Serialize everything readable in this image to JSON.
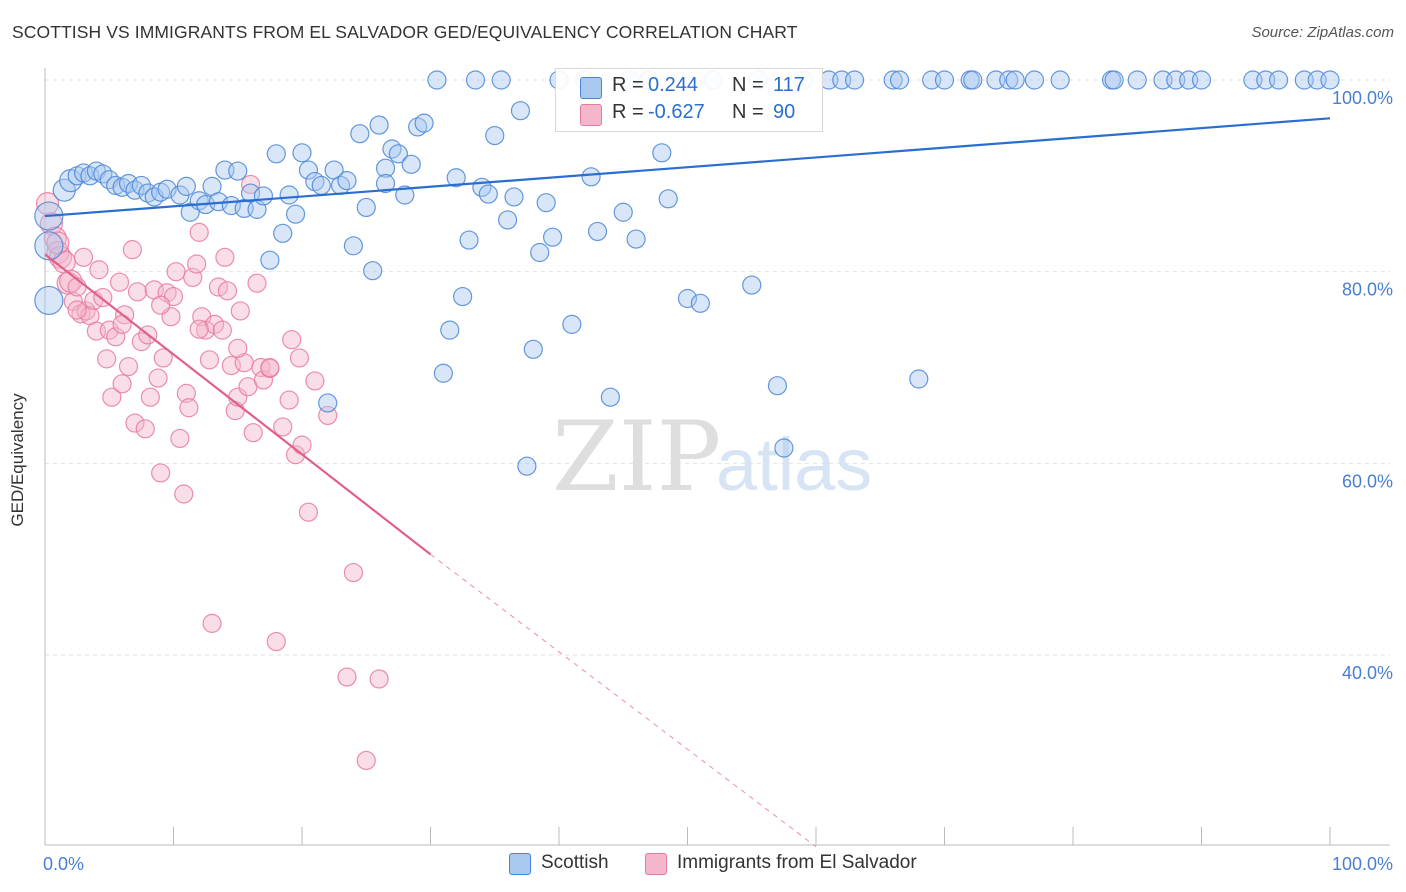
{
  "title": "SCOTTISH VS IMMIGRANTS FROM EL SALVADOR GED/EQUIVALENCY CORRELATION CHART",
  "source": "Source: ZipAtlas.com",
  "watermark": {
    "zip": "ZIP",
    "atlas": "atlas"
  },
  "colors": {
    "blue_fill": "#a9c8ef",
    "blue_stroke": "#4a86d6",
    "blue_line": "#2a6fcf",
    "pink_fill": "#f4b6c9",
    "pink_stroke": "#e77a9e",
    "pink_line": "#e0608c",
    "tick_blue": "#4a7fd0",
    "grid": "#e2e2e2"
  },
  "legend": {
    "rows": [
      {
        "r_key": "R =",
        "r_value": "0.244",
        "n_key": "N =",
        "n_value": "117"
      },
      {
        "r_key": "R =",
        "r_value": "-0.627",
        "n_key": "N =",
        "n_value": "90"
      }
    ]
  },
  "bottom_legend": [
    "Scottish",
    "Immigrants from El Salvador"
  ],
  "chart_data": {
    "type": "scatter",
    "title": "SCOTTISH VS IMMIGRANTS FROM EL SALVADOR GED/EQUIVALENCY CORRELATION CHART",
    "xlabel": "",
    "ylabel": "GED/Equivalency",
    "xlim": [
      0,
      100
    ],
    "ylim": [
      20,
      102
    ],
    "x_tick_labels": [
      "0.0%",
      "100.0%"
    ],
    "y_ticks": [
      40,
      60,
      80,
      100
    ],
    "y_tick_labels": [
      "40.0%",
      "60.0%",
      "80.0%",
      "100.0%"
    ],
    "grid": "horizontal dashed",
    "legend_position": "top-center",
    "series": [
      {
        "name": "Scottish",
        "r": 0.244,
        "n": 117,
        "trend": {
          "x": [
            0,
            100
          ],
          "y": [
            85.8,
            96.0
          ]
        },
        "points": [
          [
            0.3,
            85.8
          ],
          [
            0.3,
            82.7
          ],
          [
            0.3,
            77.0
          ],
          [
            1.5,
            88.5
          ],
          [
            2.0,
            89.5
          ],
          [
            2.5,
            90.0
          ],
          [
            3.0,
            90.3
          ],
          [
            3.5,
            90.0
          ],
          [
            4.0,
            90.5
          ],
          [
            4.5,
            90.2
          ],
          [
            5.0,
            89.6
          ],
          [
            5.5,
            89.0
          ],
          [
            6.0,
            88.8
          ],
          [
            6.5,
            89.2
          ],
          [
            7.0,
            88.5
          ],
          [
            7.5,
            89.0
          ],
          [
            8.0,
            88.2
          ],
          [
            8.5,
            87.8
          ],
          [
            9.0,
            88.3
          ],
          [
            9.5,
            88.6
          ],
          [
            10.5,
            88.0
          ],
          [
            11.0,
            88.9
          ],
          [
            11.3,
            86.2
          ],
          [
            12.0,
            87.4
          ],
          [
            12.5,
            87.0
          ],
          [
            13.0,
            88.9
          ],
          [
            13.5,
            87.3
          ],
          [
            14.0,
            90.6
          ],
          [
            14.5,
            86.9
          ],
          [
            15.0,
            90.5
          ],
          [
            15.5,
            86.6
          ],
          [
            16.0,
            88.2
          ],
          [
            16.5,
            86.5
          ],
          [
            17.0,
            87.9
          ],
          [
            17.5,
            81.2
          ],
          [
            18.0,
            92.3
          ],
          [
            18.5,
            84.0
          ],
          [
            19.0,
            88.0
          ],
          [
            19.5,
            86.0
          ],
          [
            20.0,
            92.4
          ],
          [
            20.5,
            90.6
          ],
          [
            21.0,
            89.4
          ],
          [
            21.5,
            89.0
          ],
          [
            22.0,
            66.3
          ],
          [
            22.5,
            90.6
          ],
          [
            23.0,
            89.0
          ],
          [
            23.5,
            89.5
          ],
          [
            24.0,
            82.7
          ],
          [
            24.5,
            94.4
          ],
          [
            25.0,
            86.7
          ],
          [
            25.5,
            80.1
          ],
          [
            26.0,
            95.3
          ],
          [
            26.5,
            90.8
          ],
          [
            27.0,
            92.8
          ],
          [
            27.5,
            92.3
          ],
          [
            28.0,
            88.0
          ],
          [
            28.5,
            91.2
          ],
          [
            29.0,
            95.1
          ],
          [
            29.5,
            95.5
          ],
          [
            30.5,
            100.0
          ],
          [
            31.0,
            69.4
          ],
          [
            31.5,
            73.9
          ],
          [
            32.0,
            89.8
          ],
          [
            32.5,
            77.4
          ],
          [
            33.0,
            83.3
          ],
          [
            33.5,
            100.0
          ],
          [
            34.0,
            88.8
          ],
          [
            34.5,
            88.1
          ],
          [
            35.0,
            94.2
          ],
          [
            35.5,
            100.0
          ],
          [
            36.0,
            85.4
          ],
          [
            36.5,
            87.8
          ],
          [
            37.0,
            96.8
          ],
          [
            37.5,
            59.7
          ],
          [
            38.0,
            71.9
          ],
          [
            38.5,
            82.0
          ],
          [
            39.0,
            87.2
          ],
          [
            39.5,
            83.6
          ],
          [
            40.0,
            100.0
          ],
          [
            41.0,
            74.5
          ],
          [
            42.0,
            100.0
          ],
          [
            42.5,
            89.9
          ],
          [
            43.0,
            84.2
          ],
          [
            44.0,
            66.9
          ],
          [
            45.0,
            86.2
          ],
          [
            45.5,
            100.0
          ],
          [
            46.0,
            83.4
          ],
          [
            47.0,
            100.0
          ],
          [
            48.0,
            92.4
          ],
          [
            48.5,
            87.6
          ],
          [
            50.0,
            77.2
          ],
          [
            51.0,
            76.7
          ],
          [
            52.0,
            100.0
          ],
          [
            55.0,
            78.6
          ],
          [
            57.0,
            68.1
          ],
          [
            57.5,
            61.6
          ],
          [
            59.0,
            100.0
          ],
          [
            61.0,
            100.0
          ],
          [
            62.0,
            100.0
          ],
          [
            63.0,
            100.0
          ],
          [
            66.0,
            100.0
          ],
          [
            66.5,
            100.0
          ],
          [
            68.0,
            68.8
          ],
          [
            69.0,
            100.0
          ],
          [
            70.0,
            100.0
          ],
          [
            72.0,
            100.0
          ],
          [
            72.2,
            100.0
          ],
          [
            74.0,
            100.0
          ],
          [
            75.0,
            100.0
          ],
          [
            75.5,
            100.0
          ],
          [
            77.0,
            100.0
          ],
          [
            79.0,
            100.0
          ],
          [
            83.0,
            100.0
          ],
          [
            83.2,
            100.0
          ],
          [
            85.0,
            100.0
          ],
          [
            87.0,
            100.0
          ],
          [
            88.0,
            100.0
          ],
          [
            89.0,
            100.0
          ],
          [
            90.0,
            100.0
          ],
          [
            94.0,
            100.0
          ],
          [
            95.0,
            100.0
          ],
          [
            96.0,
            100.0
          ],
          [
            98.0,
            100.0
          ],
          [
            99.0,
            100.0
          ],
          [
            100.0,
            100.0
          ],
          [
            55.5,
            100.0
          ],
          [
            26.5,
            89.2
          ]
        ]
      },
      {
        "name": "Immigrants from El Salvador",
        "r": -0.627,
        "n": 90,
        "trend": {
          "x": [
            0,
            30
          ],
          "y": [
            81.8,
            50.5
          ]
        },
        "trend_extension": {
          "x": [
            30,
            60
          ],
          "y": [
            50.5,
            20
          ]
        },
        "points": [
          [
            0.2,
            87.1
          ],
          [
            0.5,
            85.0
          ],
          [
            0.8,
            83.5
          ],
          [
            1.0,
            82.0
          ],
          [
            1.2,
            81.5
          ],
          [
            1.5,
            81.0
          ],
          [
            1.8,
            78.8
          ],
          [
            2.0,
            79.0
          ],
          [
            2.2,
            76.9
          ],
          [
            2.5,
            78.4
          ],
          [
            2.8,
            75.6
          ],
          [
            3.0,
            81.5
          ],
          [
            3.2,
            75.9
          ],
          [
            3.5,
            75.4
          ],
          [
            3.8,
            77.0
          ],
          [
            4.0,
            73.8
          ],
          [
            4.2,
            80.2
          ],
          [
            4.5,
            77.3
          ],
          [
            4.8,
            70.9
          ],
          [
            5.0,
            73.9
          ],
          [
            5.2,
            66.9
          ],
          [
            5.5,
            73.2
          ],
          [
            5.8,
            78.9
          ],
          [
            6.0,
            68.3
          ],
          [
            6.2,
            75.5
          ],
          [
            6.5,
            70.1
          ],
          [
            6.8,
            82.3
          ],
          [
            7.0,
            64.2
          ],
          [
            7.2,
            77.9
          ],
          [
            7.5,
            72.7
          ],
          [
            7.8,
            63.6
          ],
          [
            8.0,
            73.4
          ],
          [
            8.2,
            66.9
          ],
          [
            8.5,
            78.1
          ],
          [
            8.8,
            68.9
          ],
          [
            9.0,
            59.0
          ],
          [
            9.2,
            71.0
          ],
          [
            9.5,
            77.8
          ],
          [
            9.8,
            75.3
          ],
          [
            10.0,
            77.4
          ],
          [
            10.2,
            80.0
          ],
          [
            10.5,
            62.6
          ],
          [
            10.8,
            56.8
          ],
          [
            11.0,
            67.3
          ],
          [
            11.2,
            65.8
          ],
          [
            11.5,
            79.4
          ],
          [
            11.8,
            80.8
          ],
          [
            12.0,
            84.1
          ],
          [
            12.2,
            75.3
          ],
          [
            12.5,
            73.9
          ],
          [
            12.8,
            70.8
          ],
          [
            13.0,
            43.3
          ],
          [
            13.2,
            74.5
          ],
          [
            13.5,
            78.4
          ],
          [
            13.8,
            73.9
          ],
          [
            14.0,
            81.5
          ],
          [
            14.2,
            78.0
          ],
          [
            14.5,
            70.2
          ],
          [
            14.8,
            65.5
          ],
          [
            15.0,
            66.9
          ],
          [
            15.2,
            75.9
          ],
          [
            15.5,
            70.5
          ],
          [
            15.8,
            68.0
          ],
          [
            16.0,
            89.1
          ],
          [
            16.2,
            63.2
          ],
          [
            16.5,
            78.8
          ],
          [
            16.8,
            70.0
          ],
          [
            17.0,
            68.7
          ],
          [
            17.5,
            69.9
          ],
          [
            18.0,
            41.4
          ],
          [
            18.5,
            63.8
          ],
          [
            19.0,
            66.6
          ],
          [
            19.2,
            72.9
          ],
          [
            19.5,
            60.9
          ],
          [
            19.8,
            71.0
          ],
          [
            20.0,
            61.9
          ],
          [
            20.5,
            54.9
          ],
          [
            21.0,
            68.6
          ],
          [
            22.0,
            65.0
          ],
          [
            23.5,
            37.7
          ],
          [
            24.0,
            48.6
          ],
          [
            25.0,
            29.0
          ],
          [
            26.0,
            37.5
          ],
          [
            1.0,
            83.0
          ],
          [
            2.5,
            76.0
          ],
          [
            6.0,
            74.5
          ],
          [
            9.0,
            76.5
          ],
          [
            12.0,
            74.0
          ],
          [
            15.0,
            72.0
          ],
          [
            17.5,
            70.0
          ]
        ]
      }
    ]
  }
}
